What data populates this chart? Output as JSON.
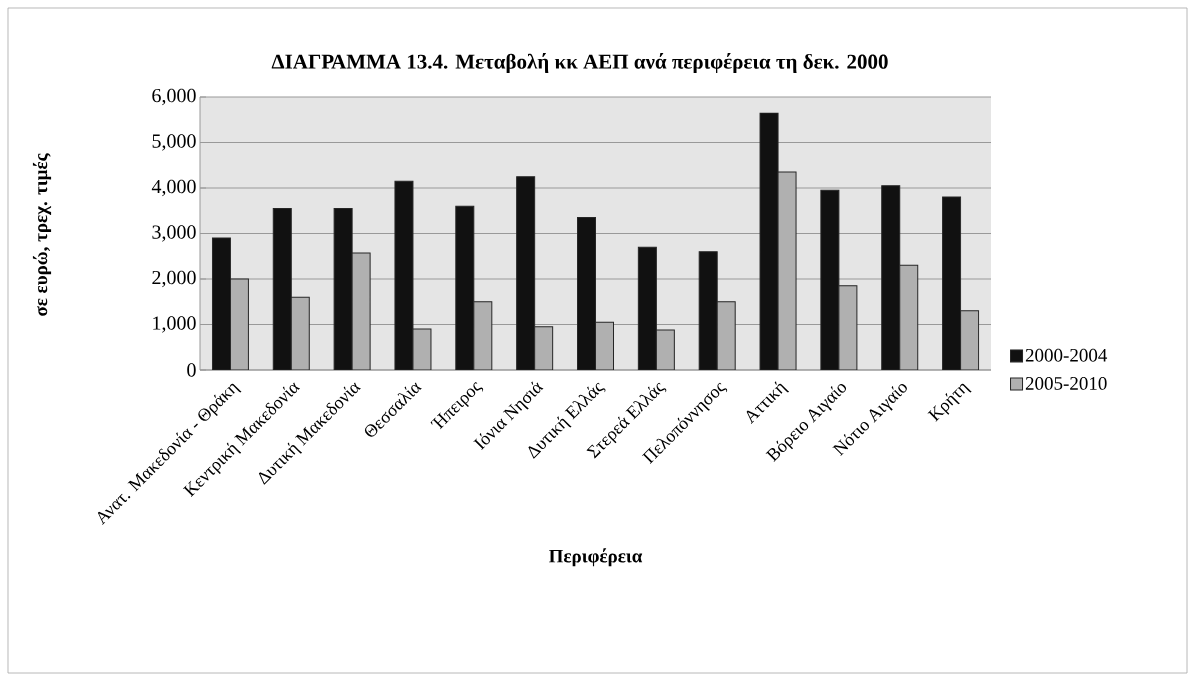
{
  "chart_data": {
    "type": "bar",
    "title": "ΔΙΑΓΡΑΜΜΑ 13.4. Μεταβολή κκ ΑΕΠ ανά περιφέρεια τη δεκ. 2000",
    "xlabel": "Περιφέρεια",
    "ylabel": "σε ευρώ, τρεχ. τιμές",
    "categories": [
      "Ανατ. Μακεδονία - Θράκη",
      "Κεντρική Μακεδονία",
      "Δυτική Μακεδονία",
      "Θεσσαλία",
      "Ήπειρος",
      "Ιόνια Νησιά",
      "Δυτική Ελλάς",
      "Στερεά Ελλάς",
      "Πελοπόννησος",
      "Αττική",
      "Βόρειο Αιγαίο",
      "Νότιο Αιγαίο",
      "Κρήτη"
    ],
    "series": [
      {
        "name": "2000-2004",
        "color": "#111111",
        "values": [
          2900,
          3550,
          3550,
          4150,
          3600,
          4250,
          3350,
          2700,
          2600,
          5650,
          3950,
          4050,
          3800
        ]
      },
      {
        "name": "2005-2010",
        "color": "#b0b0b0",
        "values": [
          2000,
          1600,
          2570,
          900,
          1500,
          950,
          1050,
          880,
          1500,
          4350,
          1850,
          2300,
          1300
        ]
      }
    ],
    "ylim": [
      0,
      6000
    ],
    "yticks": [
      0,
      {
        "value": 1000,
        "label": "1,000"
      },
      {
        "value": 2000,
        "label": "2,000"
      },
      {
        "value": 3000,
        "label": "3,000"
      },
      {
        "value": 4000,
        "label": "4,000"
      },
      {
        "value": 5000,
        "label": "5,000"
      },
      {
        "value": 6000,
        "label": "6,000"
      }
    ],
    "grid": "y",
    "legend": "right"
  }
}
